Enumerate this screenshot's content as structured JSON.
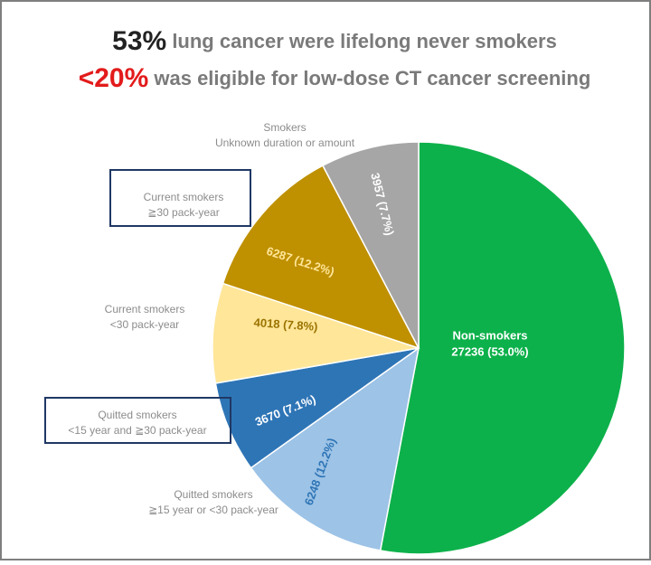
{
  "chart_data": {
    "type": "pie",
    "title": [
      {
        "text": "53%",
        "color": "#222222"
      },
      {
        "text": " lung cancer were lifelong never smokers",
        "color": "#7a7a7a"
      }
    ],
    "subtitle": [
      {
        "text": "<20%",
        "color": "#e31b1b"
      },
      {
        "text": " was eligible for low-dose CT cancer screening",
        "color": "#7a7a7a"
      }
    ],
    "categories": [
      [
        "Non-smokers"
      ],
      [
        "Quitted smokers",
        "≧15 year or <30 pack-year"
      ],
      [
        "Quitted smokers",
        "<15 year and ≧30 pack-year"
      ],
      [
        "Current smokers",
        "<30 pack-year"
      ],
      [
        "Current smokers",
        "≧30 pack-year"
      ],
      [
        "Smokers",
        "Unknown duration or amount"
      ]
    ],
    "values": [
      27236,
      6248,
      3670,
      4018,
      6287,
      3957
    ],
    "value_labels": [
      "27236 (53.0%)",
      "6248 (12.2%)",
      "3670 (7.1%)",
      "4018 (7.8%)",
      "6287 (12.2%)",
      "3957 (7.7%)"
    ],
    "colors": [
      "#0db14b",
      "#9dc3e6",
      "#2e75b6",
      "#ffe699",
      "#bf9000",
      "#a6a6a6"
    ],
    "label_colors": [
      "#ffffff",
      "#2e75b6",
      "#ffffff",
      "#9a7300",
      "#ffe699",
      "#ffffff"
    ]
  }
}
